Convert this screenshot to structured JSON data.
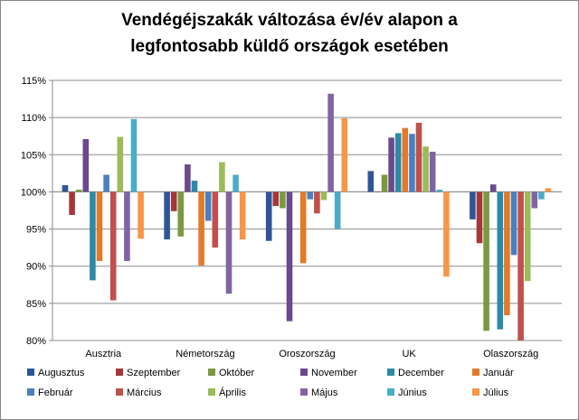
{
  "title_line1": "Vendégéjszakák változása év/év alapon a",
  "title_line2": "legfontosabb küldő országok esetében",
  "colors": {
    "Augusztus": "#2f5597",
    "Szeptember": "#a5373a",
    "Október": "#7a9a3f",
    "November": "#6a4a8c",
    "December": "#2c8aa6",
    "Január": "#e07b2a",
    "Február": "#4a7fc0",
    "Március": "#c0504d",
    "Április": "#9bbb59",
    "Május": "#8064a2",
    "Június": "#4bacc6",
    "Július": "#f79646"
  },
  "chart_data": {
    "type": "bar",
    "title": "Vendégéjszakák változása év/év alapon a legfontosabb küldő országok esetében",
    "categories": [
      "Ausztria",
      "Németország",
      "Oroszország",
      "UK",
      "Olaszország"
    ],
    "ylim": [
      80,
      115
    ],
    "yticks": [
      "80%",
      "85%",
      "90%",
      "95%",
      "100%",
      "105%",
      "110%",
      "115%"
    ],
    "baseline": 100,
    "grid": true,
    "legend": "bottom",
    "series": [
      {
        "name": "Augusztus",
        "values": [
          100.9,
          93.6,
          93.4,
          102.8,
          96.3
        ]
      },
      {
        "name": "Szeptember",
        "values": [
          96.9,
          97.4,
          98.1,
          100.0,
          93.1
        ]
      },
      {
        "name": "Október",
        "values": [
          100.3,
          94.0,
          97.8,
          102.3,
          81.3
        ]
      },
      {
        "name": "November",
        "values": [
          107.1,
          103.7,
          82.6,
          107.3,
          101.0
        ]
      },
      {
        "name": "December",
        "values": [
          88.1,
          101.5,
          100.0,
          107.9,
          81.5
        ]
      },
      {
        "name": "Január",
        "values": [
          90.7,
          90.1,
          90.4,
          108.6,
          83.4
        ]
      },
      {
        "name": "Február",
        "values": [
          102.3,
          96.1,
          99.0,
          107.8,
          91.5
        ]
      },
      {
        "name": "Március",
        "values": [
          85.4,
          92.5,
          97.1,
          109.3,
          80.0
        ]
      },
      {
        "name": "Április",
        "values": [
          107.4,
          104.0,
          98.9,
          106.1,
          88.0
        ]
      },
      {
        "name": "Május",
        "values": [
          90.7,
          86.3,
          113.2,
          105.4,
          97.8
        ]
      },
      {
        "name": "Június",
        "values": [
          109.8,
          102.3,
          95.0,
          100.3,
          99.0
        ]
      },
      {
        "name": "Július",
        "values": [
          93.7,
          93.6,
          109.9,
          88.6,
          100.5
        ]
      }
    ]
  }
}
